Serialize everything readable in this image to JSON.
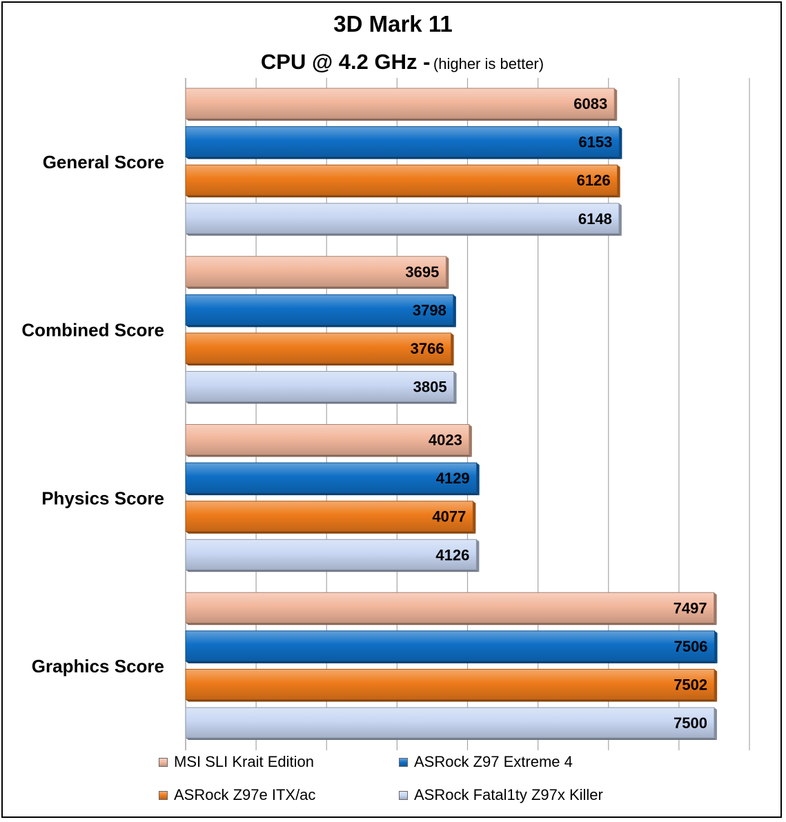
{
  "chart_data": {
    "type": "bar",
    "orientation": "horizontal",
    "title": "3D Mark 11",
    "subtitle": "CPU @ 4.2 GHz -",
    "subtitle_note": "(higher is better)",
    "categories": [
      "General Score",
      "Combined Score",
      "Physics Score",
      "Graphics Score"
    ],
    "series": [
      {
        "name": "MSI SLI Krait Edition",
        "color": "#f2b79c",
        "values": [
          6083,
          3695,
          4023,
          7497
        ]
      },
      {
        "name": "ASRock Z97 Extreme 4",
        "color": "#0f6fc6",
        "values": [
          6153,
          3798,
          4129,
          7506
        ]
      },
      {
        "name": "ASRock Z97e ITX/ac",
        "color": "#ee7b1b",
        "values": [
          6126,
          3766,
          4077,
          7502
        ]
      },
      {
        "name": "ASRock Fatal1ty Z97x Killer",
        "color": "#c8d7f3",
        "values": [
          6148,
          3805,
          4126,
          7500
        ]
      }
    ],
    "xlim": [
      0,
      8000
    ],
    "gridlines": true,
    "data_labels": true,
    "legend_position": "bottom"
  }
}
